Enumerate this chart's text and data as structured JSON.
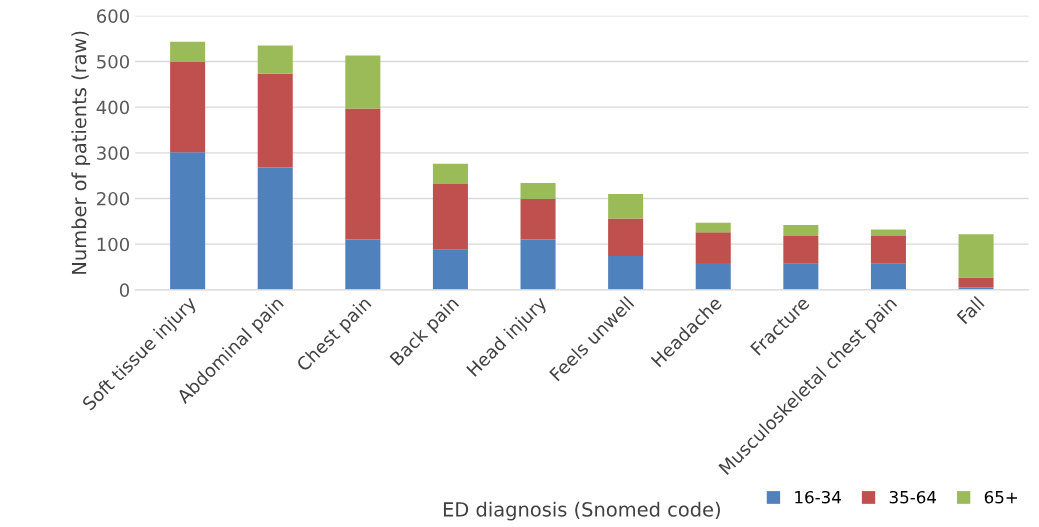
{
  "chart_data": {
    "type": "bar",
    "stacked": true,
    "xlabel": "ED diagnosis (Snomed code)",
    "ylabel": "Number of patients (raw)",
    "categories": [
      "Soft tissue injury",
      "Abdominal pain",
      "Chest pain",
      "Back pain",
      "Head injury",
      "Feels unwell",
      "Headache",
      "Fracture",
      "Musculoskeletal chest pain",
      "Fall"
    ],
    "series": [
      {
        "name": "16-34",
        "color": "#4f81bd",
        "values": [
          301,
          268,
          110,
          88,
          110,
          74,
          59,
          57,
          57,
          5
        ]
      },
      {
        "name": "35-64",
        "color": "#c0504d",
        "values": [
          199,
          205,
          287,
          144,
          89,
          82,
          67,
          61,
          61,
          22
        ]
      },
      {
        "name": "65+",
        "color": "#9bbb59",
        "values": [
          43,
          62,
          116,
          44,
          35,
          54,
          21,
          24,
          14,
          95
        ]
      }
    ],
    "ylim": [
      0,
      600
    ],
    "yticks": [
      0,
      100,
      200,
      300,
      400,
      500,
      600
    ],
    "grid": "y",
    "legend": "bottom right"
  }
}
